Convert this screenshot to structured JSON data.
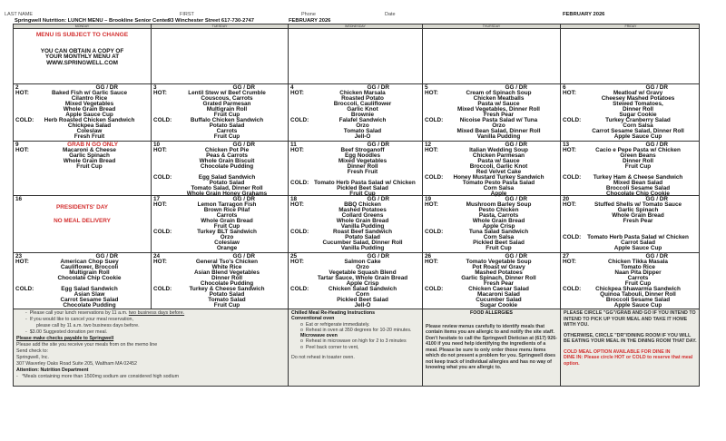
{
  "header": {
    "last_name_label": "LAST NAME",
    "first_label": "FIRST",
    "phone_label": "Phone",
    "date_label": "Date",
    "month_right": "FEBRUARY 2026",
    "title": "Springwell Nutrition: LUNCH MENU – Brookline Senior Center",
    "address": "93 Winchester Street 617-730-2747",
    "month": "FEBRUARY 2026"
  },
  "day_names": [
    "MONDAY",
    "TUESDAY",
    "WEDNESDAY",
    "THURSDAY",
    "FRIDAY"
  ],
  "colors": {
    "red": "#d32f2f",
    "footer_bg": "#ecece6"
  },
  "intro": {
    "notice": "MENU IS SUBJECT TO CHANGE",
    "copy_text": "YOU CAN OBTAIN A COPY OF YOUR MONTHLY MENU AT WWW.SPRINGWELL.COM"
  },
  "weeks": [
    [
      {
        "num": "2",
        "tag": "GG / DR",
        "hot": [
          "Baked Fish w/ Garlic Sauce",
          "Cilantro Rice",
          "Mixed Vegetables",
          "Whole Grain Bread",
          "Apple Sauce Cup"
        ],
        "cold": [
          "Herb Roasted Chicken Sandwich",
          "Chickpea Salad",
          "Coleslaw",
          "Fresh Fruit"
        ]
      },
      {
        "num": "3",
        "tag": "GG / DR",
        "hot": [
          "Lentil Stew w/ Beef Crumble",
          "Couscous, Carrots",
          "Grated Parmesan",
          "Multigrain Roll",
          "Fruit Cup"
        ],
        "cold": [
          "Buffalo Chicken Sandwich",
          "Potato Salad",
          "Carrots",
          "Fruit Cup"
        ]
      },
      {
        "num": "4",
        "tag": "GG / DR",
        "hot": [
          "Chicken Marsala",
          "Roasted Potato",
          "Broccoli, Cauliflower",
          "Garlic Knot",
          "Brownie"
        ],
        "cold": [
          "Falafel Sandwich",
          "Orzo",
          "Tomato Salad",
          "Jell-O"
        ]
      },
      {
        "num": "5",
        "tag": "GG / DR",
        "hot": [
          "Cream of Spinach Soup",
          "Chicken Meatballs",
          "Pasta w/ Sauce",
          "Mixed Vegetables, Dinner Roll",
          "Fresh Pear"
        ],
        "cold": [
          "Nicoise Pasta Salad w/ Tuna",
          "Orzo",
          "Mixed Bean Salad, Dinner Roll",
          "Vanilla Pudding"
        ]
      },
      {
        "num": "6",
        "tag": "GG / DR",
        "hot": [
          "Meatloaf w/ Gravy",
          "Cheesey Mashed Potatoes",
          "Stewed Tomatoes,",
          "Dinner Roll",
          "Sugar Cookie"
        ],
        "cold": [
          "Turkey Cranberry Salad",
          "Corn Salsa",
          "Carrot Sesame Salad, Dinner Roll",
          "Apple Sauce Cup"
        ]
      }
    ],
    [
      {
        "num": "9",
        "tag": "GRAB N GO ONLY",
        "tag_red": true,
        "hot": [
          "Macaroni & Cheese",
          "Garlic Spinach",
          "Whole Grain Bread",
          "Fruit Cup"
        ],
        "cold": []
      },
      {
        "num": "10",
        "tag": "GG / DR",
        "hot": [
          "Chicken Pot Pie",
          "Peas & Carrots",
          "Whole Grain Biscuit",
          "Chocolate Pudding"
        ],
        "cold": [
          "Egg Salad Sandwich",
          "Potato Salad",
          "Tomato Salad, Dinner Roll",
          "Whole Grain Honey Grahams"
        ]
      },
      {
        "num": "11",
        "tag": "GG / DR",
        "hot": [
          "Beef Stroganoff",
          "Egg Noodles",
          "Mixed Vegetables",
          "Dinner Roll",
          "Fresh Fruit"
        ],
        "cold": [
          "Tomato Herb Pasta Salad w/ Chicken",
          "Pickled Beet Salad",
          "Fruit Cup"
        ]
      },
      {
        "num": "12",
        "tag": "GG / DR",
        "hot": [
          "Italian Wedding Soup",
          "Chicken Parmesan",
          "Pasta w/ Sauce",
          "Broccoli, Garlic Knot",
          "Red Velvet Cake"
        ],
        "cold": [
          "Honey Mustard Turkey Sandwich",
          "Tomato Pesto Pasta Salad",
          "Corn Salsa",
          "Apple"
        ]
      },
      {
        "num": "13",
        "tag": "GG / DR",
        "hot": [
          "Cacio e Pepe Pasta w/ Chicken",
          "Green Beans",
          "Dinner Roll",
          "Fruit Cup"
        ],
        "cold": [
          "Turkey Ham & Cheese Sandwich",
          "Mixed Bean Salad",
          "Broccoli Sesame Salad",
          "Chocolate Chip Cookie"
        ]
      }
    ],
    [
      {
        "num": "16",
        "holiday": [
          "PRESIDENTS' DAY",
          "NO MEAL DELIVERY"
        ]
      },
      {
        "num": "17",
        "tag": "GG / DR",
        "hot": [
          "Lemon Tarragon Fish",
          "Brown Rice Pilaf",
          "Carrots",
          "Whole Grain Bread",
          "Fruit Cup"
        ],
        "cold": [
          "Turkey BLT Sandwich",
          "Orzo",
          "Coleslaw",
          "Orange"
        ]
      },
      {
        "num": "18",
        "tag": "GG / DR",
        "hot": [
          "BBQ Chicken",
          "Mashed Potatoes",
          "Collard Greens",
          "Whole Grain Bread",
          "Vanilla Pudding"
        ],
        "cold": [
          "Roast Beef Sandwich",
          "Potato Salad",
          "Cucumber Salad, Dinner Roll",
          "Vanilla Pudding"
        ]
      },
      {
        "num": "19",
        "tag": "GG / DR",
        "hot": [
          "Mushroom Barley Soup",
          "Pesto Chicken",
          "Pasta, Carrots",
          "Whole Grain Bread",
          "Apple Crisp"
        ],
        "cold": [
          "Tuna Salad Sandwich",
          "Corn Salsa",
          "Pickled Beet Salad",
          "Fruit Cup"
        ]
      },
      {
        "num": "20",
        "tag": "GG / DR",
        "hot": [
          "Stuffed Shells w/ Tomato Sauce",
          "Garlic Spinach",
          "Whole Grain Bread",
          "Fresh Pear"
        ],
        "cold": [
          "Tomato Herb Pasta Salad w/ Chicken",
          "Carrot Salad",
          "Apple Sauce Cup"
        ]
      }
    ],
    [
      {
        "num": "23",
        "tag": "GG / DR",
        "hot": [
          "American Chop Suey",
          "Cauliflower, Broccoli",
          "Multigrain Roll",
          "Chocolate Chip Cookie"
        ],
        "cold": [
          "Egg Salad Sandwich",
          "Asian Slaw",
          "Carrot Sesame Salad",
          "Chocolate Pudding"
        ]
      },
      {
        "num": "24",
        "tag": "GG / DR",
        "hot": [
          "General Tso's Chicken",
          "White Rice",
          "Asian Blend Vegetables",
          "Dinner Roll",
          "Chocolate Pudding"
        ],
        "cold": [
          "Turkey & Cheese Sandwich",
          "Potato Salad",
          "Tomato Salad",
          "Fruit Cup"
        ]
      },
      {
        "num": "25",
        "tag": "GG / DR",
        "hot": [
          "Salmon Cake",
          "Orzo",
          "Vegetable Squash Blend",
          "Tartar Sauce, Whole Grain Bread",
          "Apple Crisp"
        ],
        "cold": [
          "Chicken Salad Sandwich",
          "Corn",
          "Pickled Beet Salad",
          "Jell-O"
        ]
      },
      {
        "num": "26",
        "tag": "GG / DR",
        "hot": [
          "Tomato Vegetable Soup",
          "Pot Roast w/ Gravy",
          "Mashed Potatoes",
          "Garlic Spinach, Dinner Roll",
          "Fresh Pear"
        ],
        "cold": [
          "Chicken Caesar Salad",
          "Macaroni Salad",
          "Cucumber Salad",
          "Sugar Cookie"
        ]
      },
      {
        "num": "27",
        "tag": "GG / DR",
        "hot": [
          "Chicken Tikka Masala",
          "Tomato Rice",
          "Naan Pita Dipper",
          "Carrots",
          "Fruit Cup"
        ],
        "cold": [
          "Chickpea Shawarma Sandwich",
          "Quinoa Tabouli, Dinner Roll",
          "Broccoli Sesame Salad",
          "Apple Sauce Cup"
        ]
      }
    ]
  ],
  "labels": {
    "hot": "HOT:",
    "cold": "COLD:"
  },
  "footer": {
    "info": {
      "line1": "Please call your lunch reservations by 11 a.m.",
      "line1_u": "two business days before.",
      "line2": "If you would like to cancel your meal reservation,",
      "line3": "please call by 11 a.m. two business days before.",
      "line4": "$3.00 Suggested donation per meal.",
      "checks": "Please make checks payable to Springwell",
      "memo": "Please add the site you receive your meals from on the memo line",
      "send": "Send check to:",
      "org": "Springwell, Inc.",
      "addr": "307 Waverley Oaks Road  Suite 205,  Waltham MA 02452",
      "attn": "Attention: Nutrition Department",
      "sodium": "*Meals containing more than 1500mg sodium are considered high sodium"
    },
    "reheat": {
      "title": "Chilled  Meal Re-Heating Instructions",
      "conv": "Conventional oven",
      "c1": "Eat or refrigerate immediately.",
      "c2": "Reheat in oven at 350 degrees for 10-20 minutes.",
      "micro": "Microwave oven",
      "m1": "Reheat in microwave on high for 2 to 3 minutes",
      "m2": "Peel back corner to vent,",
      "toaster": "Do not reheat in toaster oven."
    },
    "allergies": {
      "title": "FOOD ALLERGIES",
      "text": "Please review menus carefully to identify meals that contain items you are allergic to and notify the site staff. Don't hesitate to call the Springwell Dietician at (617) 926-4100 if you need help identifying the ingredients of a meal. Please be sure to only order those menu items which do not present a problem for you. Springwell does not keep track of individual allergies and has no way of knowing what you are allergic to."
    },
    "circle": {
      "gg": "PLEASE CIRCLE \"GG\"/GRAB AND GO IF YOU INTEND TO INTEND TO PICK UP YOUR MEAL AND  TAKE IT HOME WITH YOU.",
      "dr": "OTHERWISE, CIRCLE \"DR\"/DINING ROOM IF YOU WILL BE EATING YOUR MEAL IN THE DINING ROOM THAT DAY.",
      "cold_red": "COLD MEAL OPTION AVAILABLE FOR DINE IN",
      "cold_red2": "DINE IN: Please circle HOT or COLD to reserve that meal option."
    }
  }
}
